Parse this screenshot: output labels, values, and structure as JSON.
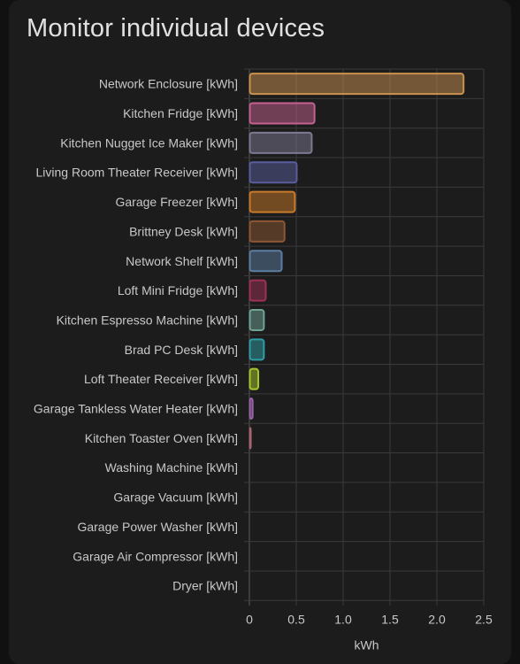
{
  "card": {
    "title": "Monitor individual devices"
  },
  "chart_data": {
    "type": "bar",
    "orientation": "horizontal",
    "categories": [
      "Network Enclosure [kWh]",
      "Kitchen Fridge [kWh]",
      "Kitchen Nugget Ice Maker [kWh]",
      "Living Room Theater Receiver [kWh]",
      "Garage Freezer [kWh]",
      "Brittney Desk [kWh]",
      "Network Shelf [kWh]",
      "Loft Mini Fridge [kWh]",
      "Kitchen Espresso Machine [kWh]",
      "Brad PC Desk [kWh]",
      "Loft Theater Receiver [kWh]",
      "Garage Tankless Water Heater [kWh]",
      "Kitchen Toaster Oven [kWh]",
      "Washing Machine [kWh]",
      "Garage Vacuum [kWh]",
      "Garage Power Washer [kWh]",
      "Garage Air Compressor [kWh]",
      "Dryer [kWh]"
    ],
    "values": [
      2.28,
      0.69,
      0.66,
      0.5,
      0.48,
      0.37,
      0.34,
      0.17,
      0.15,
      0.15,
      0.09,
      0.03,
      0.01,
      0,
      0,
      0,
      0,
      0
    ],
    "colors": [
      "#c9924f",
      "#c4618f",
      "#7c7a92",
      "#5a5e9e",
      "#c97a2a",
      "#8e5734",
      "#5d7ea3",
      "#9e3158",
      "#6fa496",
      "#2e9ea5",
      "#a8c72d",
      "#9a64a8",
      "#a4656f",
      "#888888",
      "#888888",
      "#888888",
      "#888888",
      "#888888"
    ],
    "xlabel": "kWh",
    "xlim": [
      0,
      2.5
    ],
    "xticks": [
      "0",
      "0.5",
      "1.0",
      "1.5",
      "2.0",
      "2.5"
    ],
    "grid": true,
    "legend": "none"
  }
}
